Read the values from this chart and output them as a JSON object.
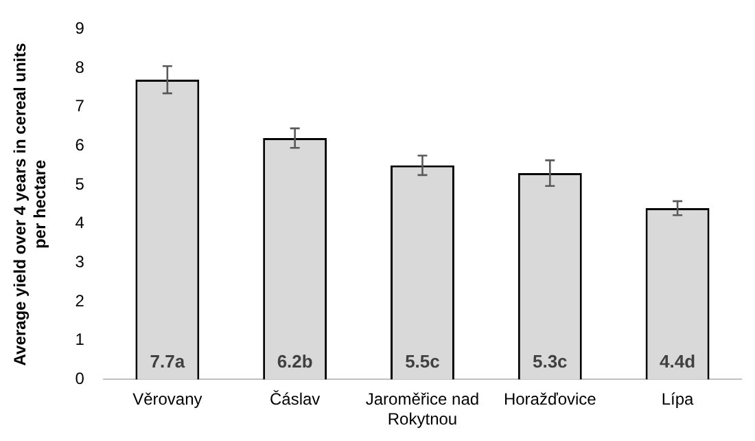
{
  "chart_data": {
    "type": "bar",
    "ylabel": "Average yield over 4 years in cereal units per hectare",
    "categories": [
      "Věrovany",
      "Čáslav",
      "Jaroměřice nad Rokytnou",
      "Horažďovice",
      "Lípa"
    ],
    "values": [
      7.7,
      6.2,
      5.5,
      5.3,
      4.4
    ],
    "errors": [
      0.35,
      0.25,
      0.25,
      0.33,
      0.18
    ],
    "value_labels": [
      "7.7a",
      "6.2b",
      "5.5c",
      "5.3c",
      "4.4d"
    ],
    "color": "#d9d9d9",
    "ylim": [
      0,
      9
    ],
    "yticks": [
      0,
      1,
      2,
      3,
      4,
      5,
      6,
      7,
      8,
      9
    ],
    "grid": false,
    "legend": false
  }
}
